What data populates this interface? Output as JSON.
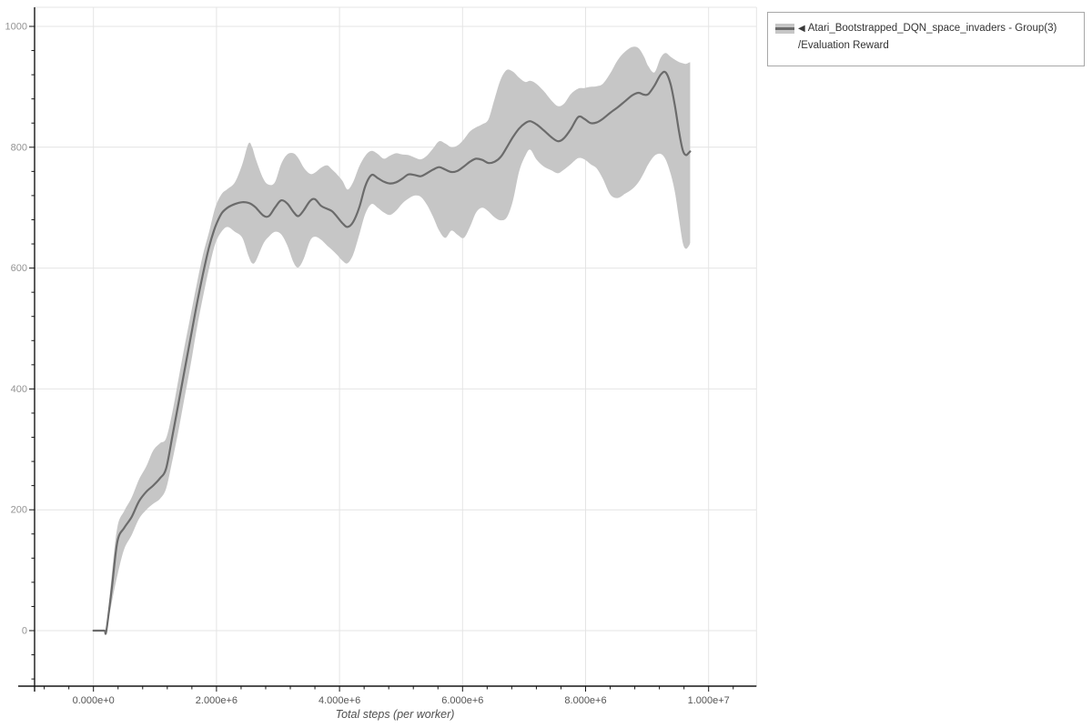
{
  "legend": {
    "marker": "◀",
    "label": "Atari_Bootstrapped_DQN_space_invaders - Group(3)",
    "sublabel": "/Evaluation Reward"
  },
  "colors": {
    "background": "#ffffff",
    "grid": "#e4e4e4",
    "axis": "#161616",
    "line": "#6b6b6b",
    "band": "#c6c6c6",
    "x_tick_label": "#555555",
    "y_tick_label": "#949494"
  },
  "chart_data": {
    "type": "line",
    "title": "",
    "xlabel": "Total steps (per worker)",
    "ylabel": "",
    "grid": true,
    "legend_position": "outside-top-right",
    "x_unit": "steps_millions",
    "x_tick_values": [
      0,
      2,
      4,
      6,
      8,
      10
    ],
    "x_tick_labels": [
      "0.000e+0",
      "2.000e+6",
      "4.000e+6",
      "6.000e+6",
      "8.000e+6",
      "1.000e+7"
    ],
    "y_tick_values": [
      0,
      200,
      400,
      600,
      800,
      1000
    ],
    "y_tick_labels": [
      "0",
      "200",
      "400",
      "600",
      "800",
      "1000"
    ],
    "x_minor_step": 0.4,
    "y_minor_step": 40,
    "xlim": [
      -0.96,
      10.78
    ],
    "ylim": [
      -92,
      1031
    ],
    "series": [
      {
        "name": "Atari_Bootstrapped_DQN_space_invaders - Group(3)/Evaluation Reward",
        "line_color": "#6b6b6b",
        "band_color": "#c6c6c6",
        "x": [
          0.0,
          0.1,
          0.18,
          0.21,
          0.3,
          0.39,
          0.5,
          0.62,
          0.74,
          0.86,
          0.97,
          1.08,
          1.18,
          1.28,
          1.38,
          1.48,
          1.58,
          1.68,
          1.78,
          1.88,
          1.98,
          2.08,
          2.18,
          2.3,
          2.42,
          2.52,
          2.58,
          2.64,
          2.76,
          2.85,
          2.95,
          3.05,
          3.15,
          3.25,
          3.33,
          3.42,
          3.52,
          3.6,
          3.7,
          3.8,
          3.88,
          3.96,
          4.05,
          4.13,
          4.22,
          4.32,
          4.42,
          4.52,
          4.62,
          4.72,
          4.82,
          4.92,
          5.02,
          5.12,
          5.22,
          5.32,
          5.42,
          5.52,
          5.62,
          5.72,
          5.82,
          5.92,
          6.02,
          6.12,
          6.22,
          6.32,
          6.42,
          6.52,
          6.62,
          6.72,
          6.82,
          6.92,
          7.02,
          7.1,
          7.2,
          7.32,
          7.44,
          7.55,
          7.65,
          7.76,
          7.88,
          7.98,
          8.08,
          8.18,
          8.28,
          8.4,
          8.52,
          8.64,
          8.76,
          8.86,
          8.95,
          9.02,
          9.12,
          9.22,
          9.3,
          9.38,
          9.45,
          9.52,
          9.58,
          9.63,
          9.68,
          9.7
        ],
        "mean": [
          0,
          0,
          0,
          0,
          72,
          148,
          170,
          188,
          214,
          230,
          240,
          252,
          268,
          320,
          375,
          430,
          485,
          540,
          590,
          635,
          668,
          690,
          700,
          706,
          709,
          708,
          705,
          700,
          687,
          686,
          700,
          712,
          707,
          693,
          686,
          696,
          711,
          714,
          703,
          698,
          694,
          685,
          674,
          668,
          676,
          700,
          736,
          754,
          749,
          743,
          740,
          742,
          748,
          755,
          754,
          752,
          757,
          763,
          767,
          763,
          759,
          761,
          768,
          776,
          781,
          779,
          774,
          776,
          784,
          800,
          817,
          831,
          840,
          843,
          838,
          828,
          817,
          810,
          815,
          830,
          850,
          847,
          840,
          841,
          847,
          857,
          866,
          876,
          886,
          890,
          887,
          888,
          902,
          920,
          924,
          905,
          870,
          825,
          795,
          787,
          791,
          793
        ],
        "band_lower": [
          0,
          0,
          0,
          0,
          48,
          92,
          135,
          158,
          185,
          200,
          210,
          218,
          235,
          280,
          330,
          385,
          440,
          500,
          552,
          600,
          640,
          660,
          668,
          660,
          650,
          620,
          608,
          612,
          640,
          652,
          660,
          656,
          638,
          610,
          601,
          616,
          645,
          652,
          647,
          637,
          630,
          622,
          612,
          608,
          622,
          655,
          690,
          706,
          700,
          692,
          688,
          695,
          707,
          715,
          720,
          718,
          705,
          685,
          662,
          650,
          662,
          655,
          650,
          668,
          692,
          700,
          694,
          684,
          679,
          684,
          712,
          760,
          786,
          796,
          780,
          768,
          762,
          757,
          763,
          772,
          782,
          780,
          772,
          765,
          748,
          722,
          716,
          723,
          731,
          742,
          758,
          772,
          786,
          789,
          780,
          757,
          727,
          680,
          642,
          632,
          637,
          642
        ],
        "band_upper": [
          0,
          0,
          0,
          0,
          95,
          172,
          198,
          220,
          250,
          272,
          298,
          310,
          318,
          360,
          415,
          470,
          522,
          574,
          622,
          660,
          700,
          722,
          731,
          742,
          772,
          806,
          800,
          780,
          748,
          738,
          742,
          772,
          788,
          790,
          782,
          766,
          756,
          758,
          766,
          770,
          763,
          755,
          744,
          730,
          742,
          768,
          786,
          794,
          789,
          781,
          786,
          790,
          788,
          787,
          783,
          780,
          786,
          798,
          810,
          806,
          800,
          803,
          813,
          826,
          833,
          838,
          846,
          880,
          912,
          928,
          925,
          915,
          908,
          910,
          905,
          893,
          878,
          868,
          872,
          888,
          897,
          898,
          900,
          901,
          905,
          922,
          944,
          958,
          966,
          964,
          950,
          934,
          924,
          948,
          956,
          950,
          945,
          941,
          939,
          938,
          940,
          941
        ]
      }
    ]
  }
}
